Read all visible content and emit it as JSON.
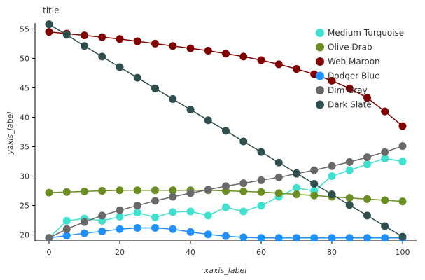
{
  "chart_data": {
    "type": "line",
    "title": "title",
    "xlabel": "xaxis_label",
    "ylabel": "yaxis_label",
    "xlim": [
      0,
      100
    ],
    "ylim": [
      19,
      56
    ],
    "xticks": [
      0,
      20,
      40,
      60,
      80,
      100
    ],
    "yticks": [
      20,
      25,
      30,
      35,
      40,
      45,
      50,
      55
    ],
    "grid": false,
    "legend_position": "top-right",
    "x": [
      0,
      5,
      10,
      15,
      20,
      25,
      30,
      35,
      40,
      45,
      50,
      55,
      60,
      65,
      70,
      75,
      80,
      85,
      90,
      95,
      100
    ],
    "series": [
      {
        "name": "Medium Turquoise",
        "color": "#40e0d0",
        "marker": "circle",
        "values": [
          19.5,
          22.4,
          22.8,
          22.4,
          23.1,
          23.8,
          23.0,
          23.9,
          24.0,
          23.3,
          24.7,
          24.0,
          25.0,
          26.5,
          28.0,
          27.5,
          30.0,
          31.0,
          32.0,
          33.0,
          32.5
        ]
      },
      {
        "name": "Olive Drab",
        "color": "#6b8e23",
        "marker": "circle",
        "values": [
          27.2,
          27.3,
          27.4,
          27.5,
          27.6,
          27.6,
          27.6,
          27.6,
          27.6,
          27.6,
          27.5,
          27.4,
          27.3,
          27.1,
          26.9,
          26.7,
          26.5,
          26.3,
          26.1,
          25.9,
          25.7
        ]
      },
      {
        "name": "Web Maroon",
        "color": "#800000",
        "marker": "circle",
        "values": [
          54.5,
          54.2,
          53.9,
          53.6,
          53.3,
          52.9,
          52.5,
          52.1,
          51.7,
          51.3,
          50.8,
          50.3,
          49.7,
          49.0,
          48.2,
          47.3,
          46.2,
          44.9,
          43.3,
          41.0,
          38.5
        ]
      },
      {
        "name": "Dodger Blue",
        "color": "#1e90ff",
        "marker": "circle",
        "values": [
          19.5,
          19.9,
          20.3,
          20.6,
          21.0,
          21.2,
          21.2,
          21.0,
          20.5,
          20.1,
          19.8,
          19.6,
          19.5,
          19.5,
          19.5,
          19.5,
          19.5,
          19.5,
          19.5,
          19.5,
          19.5
        ]
      },
      {
        "name": "Dim Gray",
        "color": "#696969",
        "marker": "circle",
        "values": [
          19.5,
          21.0,
          22.2,
          23.3,
          24.2,
          25.0,
          25.8,
          26.5,
          27.1,
          27.7,
          28.3,
          28.8,
          29.3,
          29.8,
          30.4,
          31.0,
          31.7,
          32.4,
          33.2,
          34.1,
          35.1
        ]
      },
      {
        "name": "Dark Slate",
        "color": "#2f4f4f",
        "marker": "circle",
        "values": [
          55.8,
          54.0,
          52.1,
          50.3,
          48.5,
          46.7,
          44.9,
          43.1,
          41.3,
          39.5,
          37.7,
          35.9,
          34.1,
          32.3,
          30.5,
          28.7,
          26.9,
          25.1,
          23.3,
          21.5,
          19.7
        ]
      }
    ]
  }
}
